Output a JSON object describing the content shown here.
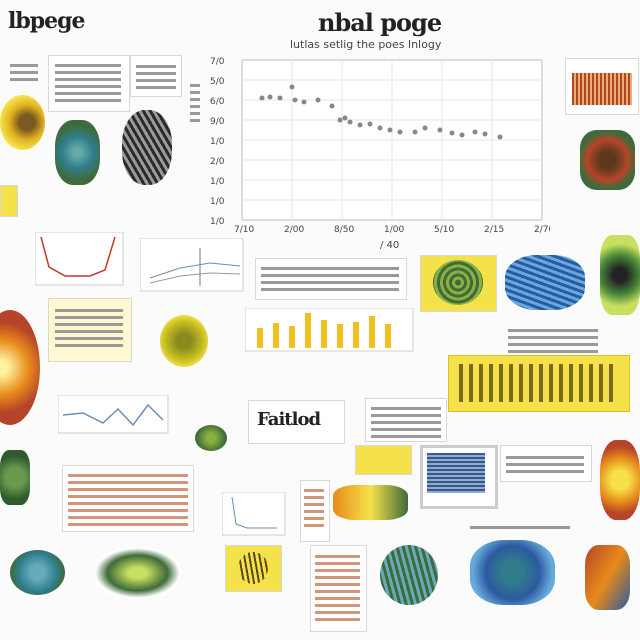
{
  "header": {
    "left_title": "lbpege",
    "center_title": "nbal poge",
    "subtitle": "lutlas setlig the poes lnlogy"
  },
  "main_chart": {
    "y_ticks": [
      "7/0",
      "5/0",
      "6/0",
      "9/0",
      "1/0",
      "2/0",
      "1/0",
      "1/0",
      "1/0"
    ],
    "x_ticks": [
      "7/10",
      "2/00",
      "8/50",
      "1/00",
      "5/10",
      "2/15",
      "2/70"
    ],
    "x_label": "/ 40"
  },
  "colors": {
    "yellow": "#f5e24a",
    "orange": "#e88a1a",
    "teal": "#2f7d8c",
    "green": "#3f6b3a",
    "blue": "#2c5aa0",
    "rust": "#b5452a"
  },
  "small_labels": {
    "boxed_text": "Faitlod"
  },
  "icons": [
    "line-chart-icon",
    "bar-chart-icon",
    "leaf-icon",
    "shell-icon",
    "plant-icon"
  ]
}
